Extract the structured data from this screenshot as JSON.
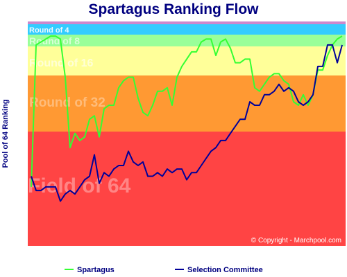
{
  "chart_data": {
    "type": "line",
    "title": "Spartagus Ranking Flow",
    "ylabel": "Pool of 64 Ranking",
    "copyright": "© Copyright - Marchpool.com",
    "ylim": [
      64,
      1
    ],
    "zones": [
      {
        "name": "Round of 4",
        "from": 1,
        "to": 4,
        "color": "#33ccff",
        "label_size": 11,
        "label_opacity": 0.9
      },
      {
        "name": "Round of 8",
        "from": 5,
        "to": 8,
        "color": "#99ff99",
        "label_size": 14,
        "label_opacity": 0.6
      },
      {
        "name": "Round of 16",
        "from": 9,
        "to": 16,
        "color": "#ffff99",
        "label_size": 16,
        "label_opacity": 0.6
      },
      {
        "name": "Round of 32",
        "from": 17,
        "to": 32,
        "color": "#ff9933",
        "label_size": 19,
        "label_opacity": 0.35
      },
      {
        "name": "Field of 64",
        "from": 33,
        "to": 64,
        "color": "#ff4444",
        "label_size": 30,
        "label_opacity": 0.35
      }
    ],
    "top_band_color": "#cc88cc",
    "series": [
      {
        "name": "Spartagus",
        "color": "#33ff33",
        "values": [
          48,
          8,
          7,
          6,
          5,
          5,
          6,
          17,
          37,
          33,
          35,
          34,
          29,
          28,
          34,
          26,
          25,
          25,
          20,
          18,
          17,
          17,
          23,
          27,
          28,
          25,
          21,
          21,
          20,
          25,
          17,
          14,
          12,
          10,
          10,
          7,
          6,
          6,
          11,
          7,
          6,
          9,
          13,
          13,
          12,
          12,
          20,
          21,
          19,
          17,
          16,
          16,
          18,
          19,
          24,
          25,
          22,
          25,
          22,
          15,
          15,
          11,
          8,
          6,
          5
        ]
      },
      {
        "name": "Selection Committee",
        "color": "#000099",
        "values": [
          45,
          49,
          49,
          48,
          48,
          48,
          52,
          50,
          49,
          50,
          48,
          46,
          45,
          39,
          47,
          44,
          45,
          43,
          42,
          42,
          38,
          41,
          42,
          41,
          45,
          45,
          44,
          45,
          43,
          44,
          43,
          43,
          46,
          44,
          44,
          42,
          40,
          38,
          37,
          35,
          35,
          33,
          31,
          29,
          29,
          24,
          25,
          25,
          22,
          22,
          21,
          19,
          21,
          20,
          21,
          24,
          25,
          24,
          22,
          14,
          14,
          8,
          8,
          13,
          8
        ]
      }
    ]
  }
}
